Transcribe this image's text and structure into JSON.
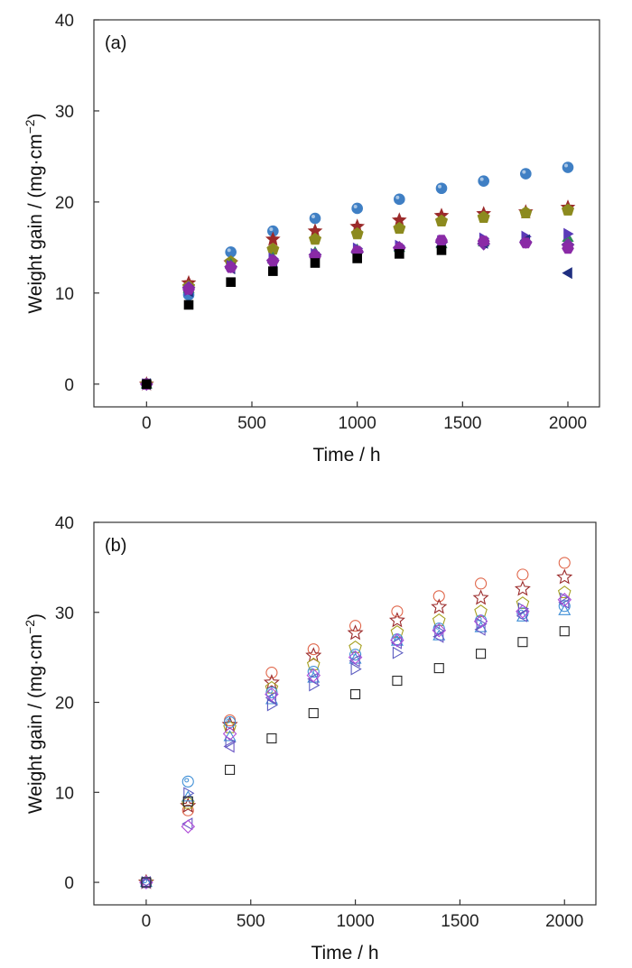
{
  "chart_data": [
    {
      "type": "scatter",
      "panel_label": "(a)",
      "xlabel": "Time / h",
      "ylabel": "Weight gain / (mg·cm",
      "ylabel_sup": "−2",
      "ylabel_close": ")",
      "xlim": [
        -250,
        2150
      ],
      "ylim": [
        -2.5,
        40
      ],
      "xticks": [
        0,
        500,
        1000,
        1500,
        2000
      ],
      "yticks": [
        0,
        10,
        20,
        30,
        40
      ],
      "grid": false,
      "legend": "none",
      "x": [
        0,
        200,
        400,
        600,
        800,
        1000,
        1200,
        1400,
        1600,
        1800,
        2000
      ],
      "series": [
        {
          "marker": "circle",
          "color": "#3f7fc4",
          "values": [
            0,
            9.8,
            14.5,
            16.8,
            18.2,
            19.3,
            20.3,
            21.5,
            22.3,
            23.1,
            23.8
          ]
        },
        {
          "marker": "star",
          "color": "#9b2a2a",
          "values": [
            0,
            11.1,
            13.3,
            15.9,
            16.8,
            17.3,
            18.0,
            18.5,
            18.7,
            18.9,
            19.4
          ]
        },
        {
          "marker": "pentagon",
          "color": "#8c8a1e",
          "values": [
            0,
            10.7,
            13.4,
            14.8,
            15.9,
            16.5,
            17.1,
            17.9,
            18.3,
            18.8,
            19.1
          ]
        },
        {
          "marker": "triangle-up",
          "color": "#2e8b57",
          "values": [
            0,
            10.5,
            13.2,
            13.9,
            14.5,
            14.8,
            15.0,
            15.4,
            15.6,
            15.9,
            16.1
          ]
        },
        {
          "marker": "triangle-right",
          "color": "#5a3ab8",
          "values": [
            0,
            10.3,
            13.0,
            13.8,
            14.3,
            14.9,
            15.2,
            15.7,
            16.0,
            16.2,
            16.5
          ]
        },
        {
          "marker": "diamond",
          "color": "#7c2fa6",
          "values": [
            0,
            10.6,
            12.9,
            13.6,
            14.2,
            14.5,
            15.0,
            15.6,
            15.4,
            15.6,
            15.3
          ]
        },
        {
          "marker": "triangle-left",
          "color": "#1f2f80",
          "values": [
            0,
            10.2,
            12.7,
            13.3,
            13.9,
            14.4,
            14.7,
            15.1,
            15.5,
            15.8,
            12.2
          ]
        },
        {
          "marker": "hexagon",
          "color": "#8a2aa6",
          "values": [
            0,
            10.4,
            12.8,
            13.5,
            14.0,
            14.6,
            14.9,
            15.8,
            15.7,
            15.5,
            14.9
          ]
        },
        {
          "marker": "square",
          "color": "#000000",
          "values": [
            0,
            8.7,
            11.2,
            12.4,
            13.3,
            13.8,
            14.3,
            14.7,
            null,
            null,
            null
          ]
        }
      ]
    },
    {
      "type": "scatter",
      "panel_label": "(b)",
      "xlabel": "Time / h",
      "ylabel": "Weight gain / (mg·cm",
      "ylabel_sup": "−2",
      "ylabel_close": ")",
      "xlim": [
        -250,
        2150
      ],
      "ylim": [
        -2.5,
        40
      ],
      "xticks": [
        0,
        500,
        1000,
        1500,
        2000
      ],
      "yticks": [
        0,
        10,
        20,
        30,
        40
      ],
      "grid": false,
      "legend": "none",
      "x": [
        0,
        200,
        400,
        600,
        800,
        1000,
        1200,
        1400,
        1600,
        1800,
        2000
      ],
      "series": [
        {
          "marker": "open-circle",
          "color": "#e0664a",
          "values": [
            0,
            8.0,
            18.0,
            23.3,
            25.9,
            28.5,
            30.1,
            31.8,
            33.2,
            34.2,
            35.5
          ]
        },
        {
          "marker": "open-star",
          "color": "#9b2a2a",
          "values": [
            0,
            8.5,
            17.5,
            22.2,
            25.2,
            27.7,
            29.1,
            30.6,
            31.6,
            32.6,
            33.9
          ]
        },
        {
          "marker": "open-pentagon",
          "color": "#a6a020",
          "values": [
            0,
            8.8,
            17.2,
            21.6,
            24.2,
            26.1,
            27.8,
            29.1,
            30.1,
            31.0,
            32.2
          ]
        },
        {
          "marker": "open-circle-dot",
          "color": "#3f8fd6",
          "values": [
            0,
            11.2,
            17.8,
            21.1,
            23.4,
            25.3,
            27.0,
            28.2,
            29.1,
            29.9,
            30.7
          ]
        },
        {
          "marker": "open-triangle-up",
          "color": "#3f8fd6",
          "values": [
            0,
            9.5,
            16.2,
            20.3,
            22.7,
            24.8,
            26.8,
            27.4,
            28.3,
            29.5,
            30.2
          ]
        },
        {
          "marker": "open-triangle-right",
          "color": "#5a5ac0",
          "values": [
            0,
            9.9,
            15.6,
            19.7,
            21.9,
            23.7,
            25.5,
            27.9,
            28.7,
            30.4,
            31.5
          ]
        },
        {
          "marker": "open-triangle-left",
          "color": "#6a55c4",
          "values": [
            0,
            6.5,
            15.1,
            20.5,
            22.6,
            24.6,
            26.6,
            27.3,
            28.1,
            29.6,
            31.1
          ]
        },
        {
          "marker": "open-diamond",
          "color": "#b04fd8",
          "values": [
            0,
            6.2,
            16.5,
            20.9,
            23.0,
            25.0,
            26.9,
            28.0,
            29.0,
            30.1,
            31.4
          ]
        },
        {
          "marker": "open-square",
          "color": "#222222",
          "values": [
            0,
            9.0,
            12.5,
            16.0,
            18.8,
            20.9,
            22.4,
            23.8,
            25.4,
            26.7,
            27.9
          ]
        }
      ]
    }
  ]
}
